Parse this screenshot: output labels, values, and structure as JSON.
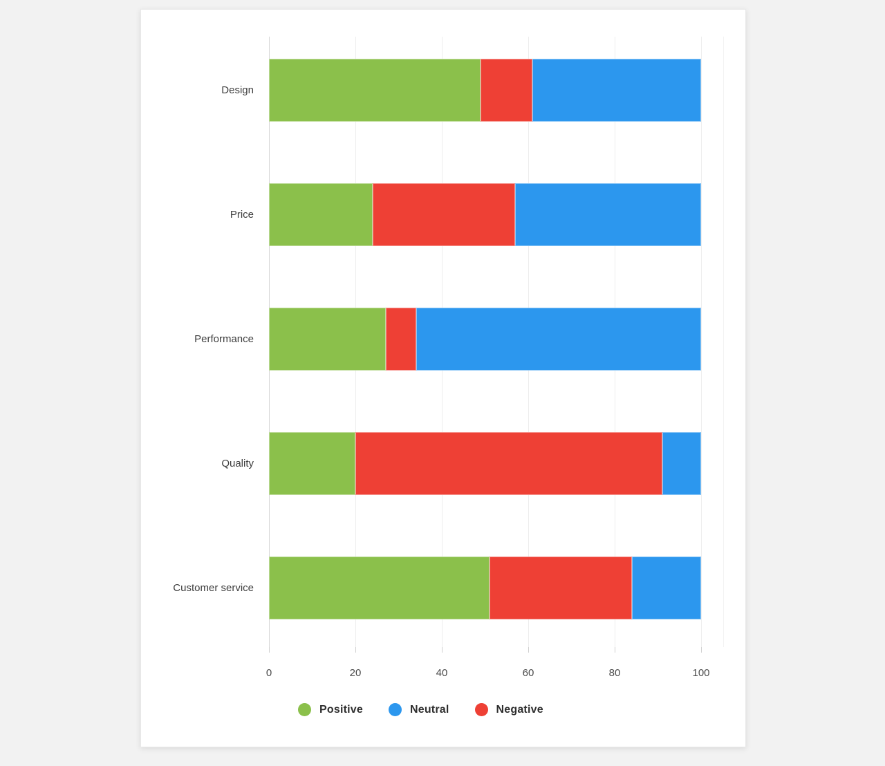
{
  "chart_data": {
    "type": "bar",
    "orientation": "horizontal-stacked",
    "title": "",
    "xlabel": "",
    "ylabel": "",
    "categories": [
      "Design",
      "Price",
      "Performance",
      "Quality",
      "Customer service"
    ],
    "series": [
      {
        "name": "Positive",
        "color": "#8BC04B",
        "values": [
          49,
          24,
          27,
          20,
          51
        ]
      },
      {
        "name": "Negative",
        "color": "#EE4035",
        "values": [
          12,
          33,
          7,
          71,
          33
        ]
      },
      {
        "name": "Neutral",
        "color": "#2C97EE",
        "values": [
          39,
          43,
          66,
          9,
          16
        ]
      }
    ],
    "stack_order": [
      "Positive",
      "Negative",
      "Neutral"
    ],
    "legend": [
      {
        "label": "Positive",
        "color": "#8BC04B"
      },
      {
        "label": "Neutral",
        "color": "#2C97EE"
      },
      {
        "label": "Negative",
        "color": "#EE4035"
      }
    ],
    "legend_position": "bottom",
    "xticks": [
      0,
      20,
      40,
      60,
      80,
      100
    ],
    "xlim": [
      0,
      105
    ],
    "grid": true
  }
}
